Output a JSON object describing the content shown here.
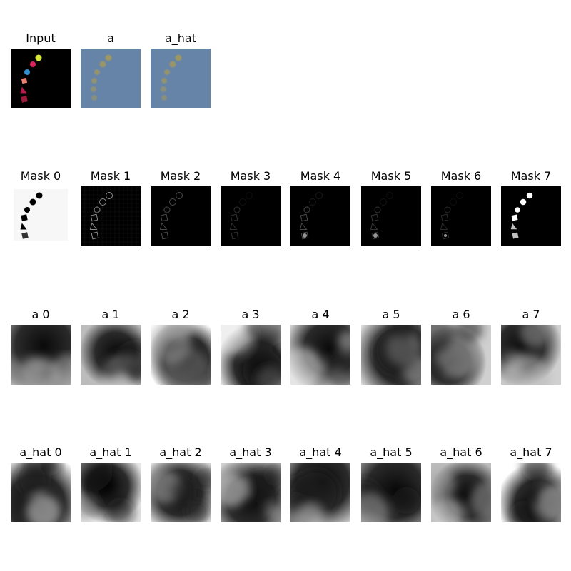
{
  "rows": [
    {
      "name": "input-row",
      "panels": [
        {
          "title": "Input",
          "kind": "input"
        },
        {
          "title": "a",
          "kind": "recon"
        },
        {
          "title": "a_hat",
          "kind": "recon"
        }
      ]
    },
    {
      "name": "mask-row",
      "panels": [
        {
          "title": "Mask 0",
          "kind": "mask0"
        },
        {
          "title": "Mask 1",
          "kind": "mask1"
        },
        {
          "title": "Mask 2",
          "kind": "mask2"
        },
        {
          "title": "Mask 3",
          "kind": "mask3"
        },
        {
          "title": "Mask 4",
          "kind": "mask4"
        },
        {
          "title": "Mask 5",
          "kind": "mask5"
        },
        {
          "title": "Mask 6",
          "kind": "mask6"
        },
        {
          "title": "Mask 7",
          "kind": "mask7"
        }
      ]
    },
    {
      "name": "a-row",
      "panels": [
        {
          "title": "a 0",
          "kind": "heat"
        },
        {
          "title": "a 1",
          "kind": "heat"
        },
        {
          "title": "a 2",
          "kind": "heat"
        },
        {
          "title": "a 3",
          "kind": "heat"
        },
        {
          "title": "a 4",
          "kind": "heat"
        },
        {
          "title": "a 5",
          "kind": "heat"
        },
        {
          "title": "a 6",
          "kind": "heat"
        },
        {
          "title": "a 7",
          "kind": "heat"
        }
      ]
    },
    {
      "name": "a-hat-row",
      "panels": [
        {
          "title": "a_hat 0",
          "kind": "heat"
        },
        {
          "title": "a_hat 1",
          "kind": "heat"
        },
        {
          "title": "a_hat 2",
          "kind": "heat"
        },
        {
          "title": "a_hat 3",
          "kind": "heat"
        },
        {
          "title": "a_hat 4",
          "kind": "heat"
        },
        {
          "title": "a_hat 5",
          "kind": "heat"
        },
        {
          "title": "a_hat 6",
          "kind": "heat"
        },
        {
          "title": "a_hat 7",
          "kind": "heat"
        }
      ]
    }
  ],
  "colors": {
    "background": "#ffffff",
    "input_background": "#000000",
    "recon_background": "#6683a8",
    "recon_shapes": "#a39a5a",
    "input_shapes": [
      "#a01a3a",
      "#b21a48",
      "#e8826e",
      "#2f8fcf",
      "#d8245a",
      "#d6e63a"
    ]
  }
}
